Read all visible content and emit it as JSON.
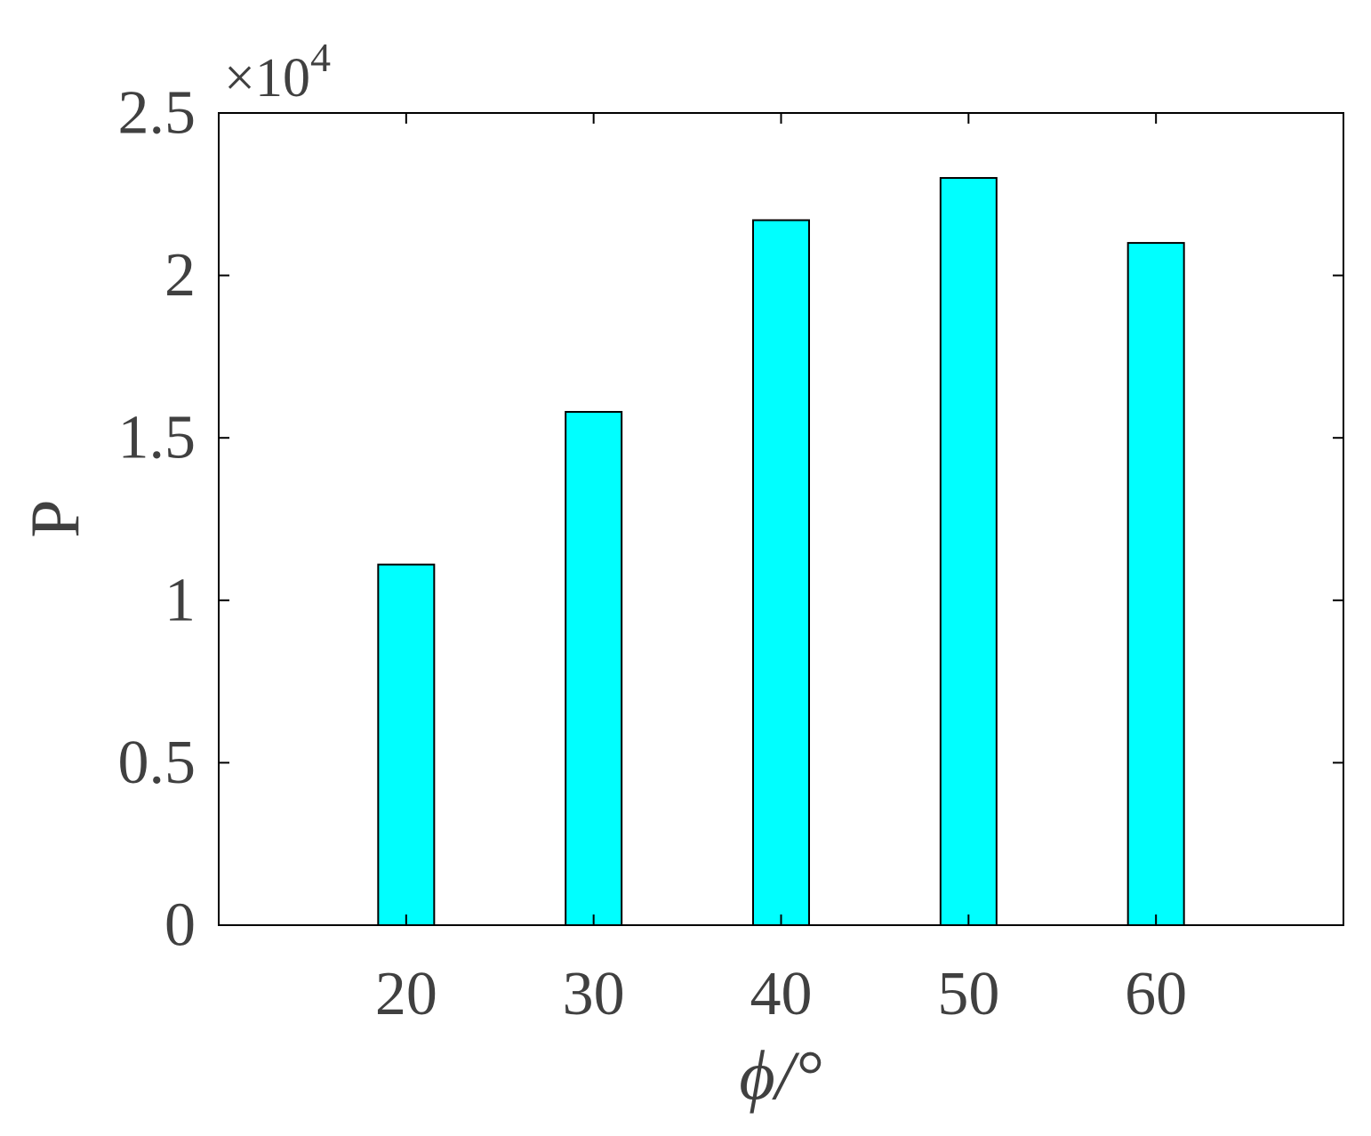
{
  "chart_data": {
    "type": "bar",
    "categories": [
      "20",
      "30",
      "40",
      "50",
      "60"
    ],
    "values": [
      11100,
      15800,
      21700,
      23000,
      21000
    ],
    "xlabel": "ϕ/°",
    "ylabel": "P",
    "ylim": [
      0,
      25000
    ],
    "y_ticks": [
      0,
      5000,
      10000,
      15000,
      20000,
      25000
    ],
    "y_tick_labels": [
      "0",
      "0.5",
      "1",
      "1.5",
      "2",
      "2.5"
    ],
    "y_exponent": {
      "base": "×10",
      "power": "4"
    },
    "xlim": [
      10,
      70
    ],
    "x_ticks": [
      20,
      30,
      40,
      50,
      60
    ],
    "grid": false,
    "legend": "none",
    "bar_color": "#00FFFF",
    "edge_color": "#000000"
  }
}
